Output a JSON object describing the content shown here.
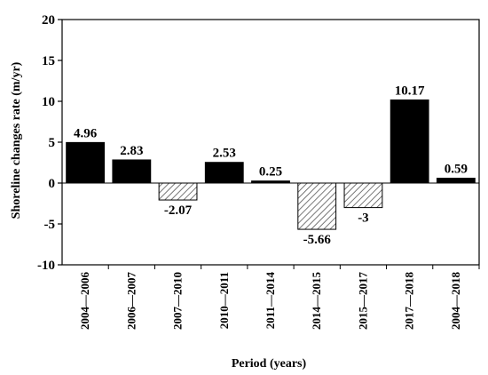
{
  "chart_data": {
    "type": "bar",
    "title": "",
    "xlabel": "Period (years)",
    "ylabel": "Shoreline changes rate (m/yr)",
    "ylim": [
      -10,
      20
    ],
    "yticks": [
      -10,
      -5,
      0,
      5,
      10,
      15,
      20
    ],
    "grid": false,
    "categories": [
      "2004—2006",
      "2006—2007",
      "2007—2010",
      "2010—2011",
      "2011—2014",
      "2014—2015",
      "2015—2017",
      "2017—2018",
      "2004—2018"
    ],
    "values": [
      4.96,
      2.83,
      -2.07,
      2.53,
      0.25,
      -5.66,
      -3,
      10.17,
      0.59
    ],
    "value_labels": [
      "4.96",
      "2.83",
      "-2.07",
      "2.53",
      "0.25",
      "-5.66",
      "-3",
      "10.17",
      "0.59"
    ],
    "colors": {
      "positive_fill": "#000000",
      "negative_fill": "hatched",
      "negative_hatch": "#555555"
    }
  }
}
